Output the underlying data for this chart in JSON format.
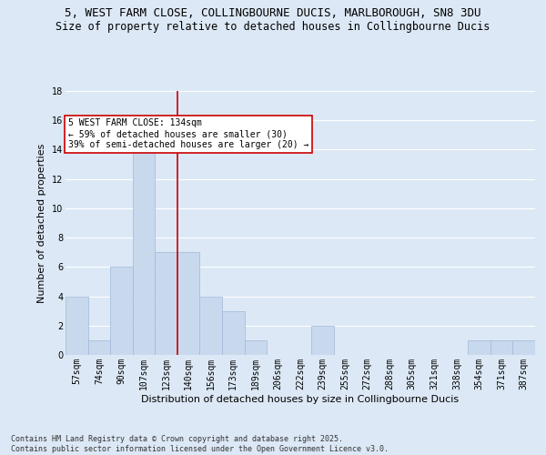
{
  "title1": "5, WEST FARM CLOSE, COLLINGBOURNE DUCIS, MARLBOROUGH, SN8 3DU",
  "title2": "Size of property relative to detached houses in Collingbourne Ducis",
  "xlabel": "Distribution of detached houses by size in Collingbourne Ducis",
  "ylabel": "Number of detached properties",
  "categories": [
    "57sqm",
    "74sqm",
    "90sqm",
    "107sqm",
    "123sqm",
    "140sqm",
    "156sqm",
    "173sqm",
    "189sqm",
    "206sqm",
    "222sqm",
    "239sqm",
    "255sqm",
    "272sqm",
    "288sqm",
    "305sqm",
    "321sqm",
    "338sqm",
    "354sqm",
    "371sqm",
    "387sqm"
  ],
  "values": [
    4,
    1,
    6,
    14,
    7,
    7,
    4,
    3,
    1,
    0,
    0,
    2,
    0,
    0,
    0,
    0,
    0,
    0,
    1,
    1,
    1
  ],
  "bar_color": "#c8d9ee",
  "bar_edge_color": "#a0b8d8",
  "vline_x": 4.5,
  "vline_color": "#cc0000",
  "annotation_text": "5 WEST FARM CLOSE: 134sqm\n← 59% of detached houses are smaller (30)\n39% of semi-detached houses are larger (20) →",
  "annotation_box_color": "#ffffff",
  "annotation_box_edge": "#cc0000",
  "ylim": [
    0,
    18
  ],
  "yticks": [
    0,
    2,
    4,
    6,
    8,
    10,
    12,
    14,
    16,
    18
  ],
  "footer": "Contains HM Land Registry data © Crown copyright and database right 2025.\nContains public sector information licensed under the Open Government Licence v3.0.",
  "bg_color": "#dce8f5",
  "grid_color": "#ffffff",
  "title1_fontsize": 9,
  "title2_fontsize": 8.5,
  "footer_fontsize": 6,
  "annot_fontsize": 7,
  "ylabel_fontsize": 8,
  "xlabel_fontsize": 8,
  "tick_fontsize": 7
}
